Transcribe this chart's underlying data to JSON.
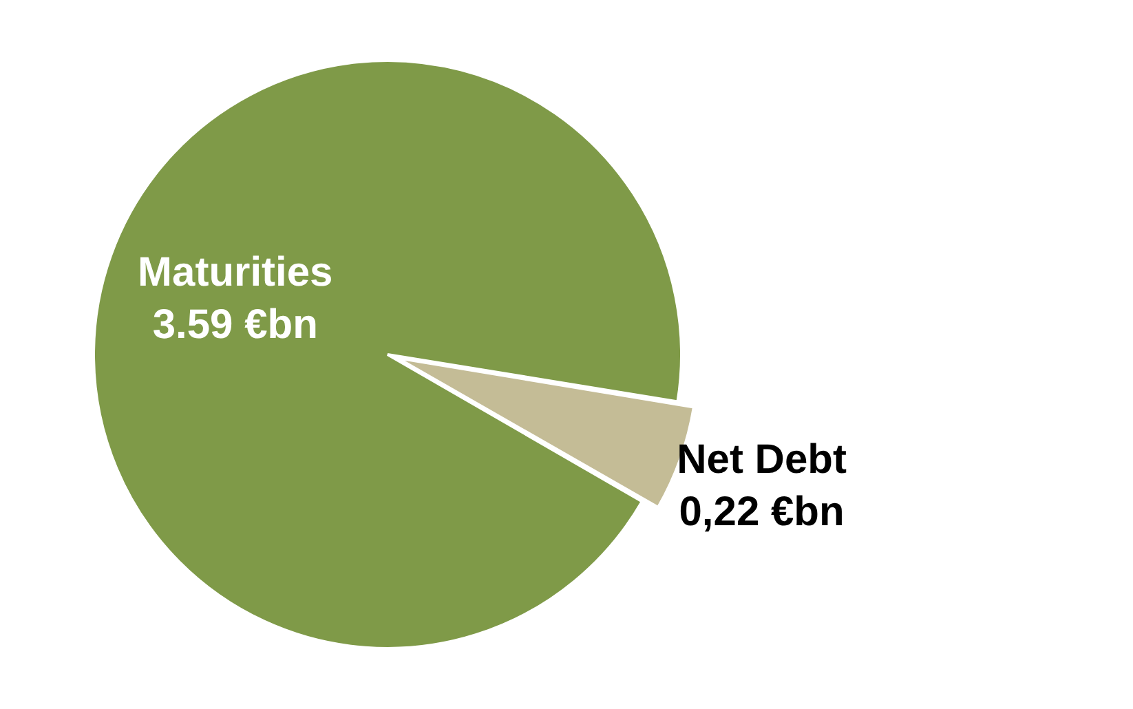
{
  "chart_data": {
    "type": "pie",
    "categories": [
      "Maturities",
      "Net Debt"
    ],
    "values": [
      3.59,
      0.22
    ],
    "colors": [
      "#7f9a48",
      "#c4bc96"
    ],
    "value_labels": [
      "3.59 €bn",
      "0,22 €bn"
    ]
  }
}
